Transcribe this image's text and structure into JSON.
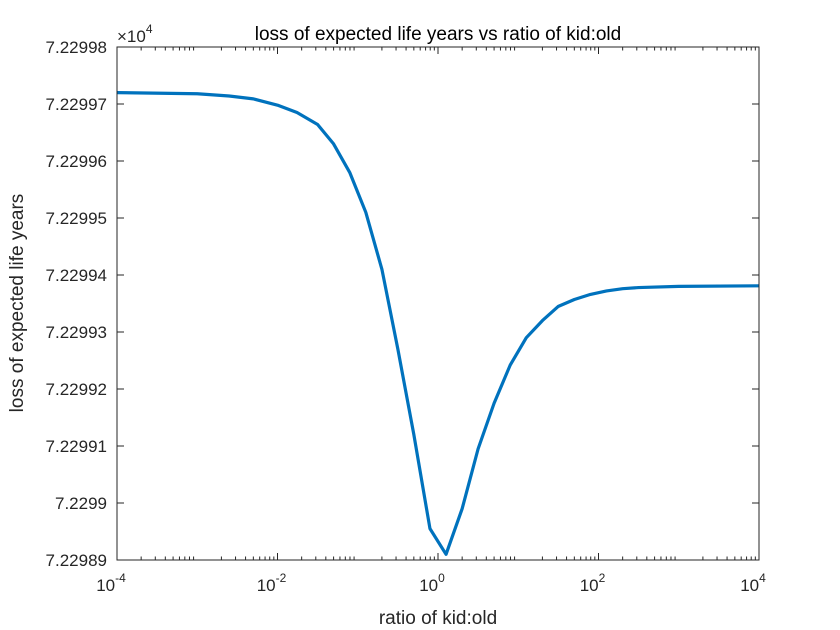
{
  "chart_data": {
    "type": "line",
    "title": "loss of expected life years vs ratio of kid:old",
    "xlabel": "ratio of kid:old",
    "ylabel": "loss of expected life years",
    "x_scale": "log",
    "xlim": [
      0.0001,
      10000
    ],
    "ylim": [
      72298.9,
      72299.8
    ],
    "y_exponent_label": "×10",
    "y_exponent_power": "4",
    "x_ticks": [
      {
        "value": 0.0001,
        "base": "10",
        "exp": "-4"
      },
      {
        "value": 0.01,
        "base": "10",
        "exp": "-2"
      },
      {
        "value": 1,
        "base": "10",
        "exp": "0"
      },
      {
        "value": 100,
        "base": "10",
        "exp": "2"
      },
      {
        "value": 10000,
        "base": "10",
        "exp": "4"
      }
    ],
    "y_ticks": [
      {
        "value": 72298.9,
        "label": "7.22989"
      },
      {
        "value": 72299.0,
        "label": "7.2299"
      },
      {
        "value": 72299.1,
        "label": "7.22991"
      },
      {
        "value": 72299.2,
        "label": "7.22992"
      },
      {
        "value": 72299.3,
        "label": "7.22993"
      },
      {
        "value": 72299.4,
        "label": "7.22994"
      },
      {
        "value": 72299.5,
        "label": "7.22995"
      },
      {
        "value": 72299.6,
        "label": "7.22996"
      },
      {
        "value": 72299.7,
        "label": "7.22997"
      },
      {
        "value": 72299.8,
        "label": "7.22998"
      }
    ],
    "grid": false,
    "series": [
      {
        "color": "#0072BD",
        "x": [
          0.0001,
          0.001,
          0.0025,
          0.005,
          0.01,
          0.0175,
          0.0316,
          0.05,
          0.0794,
          0.126,
          0.2,
          0.316,
          0.5,
          0.794,
          1.26,
          2.0,
          3.16,
          5.0,
          7.94,
          12.6,
          20,
          31.6,
          50,
          79.4,
          126,
          200,
          316,
          1000,
          10000
        ],
        "y": [
          72299.72,
          72299.718,
          72299.714,
          72299.709,
          72299.698,
          72299.685,
          72299.664,
          72299.63,
          72299.58,
          72299.51,
          72299.41,
          72299.27,
          72299.12,
          72298.955,
          72298.91,
          72298.99,
          72299.095,
          72299.175,
          72299.242,
          72299.29,
          72299.32,
          72299.345,
          72299.357,
          72299.366,
          72299.372,
          72299.376,
          72299.378,
          72299.38,
          72299.381
        ]
      }
    ]
  }
}
